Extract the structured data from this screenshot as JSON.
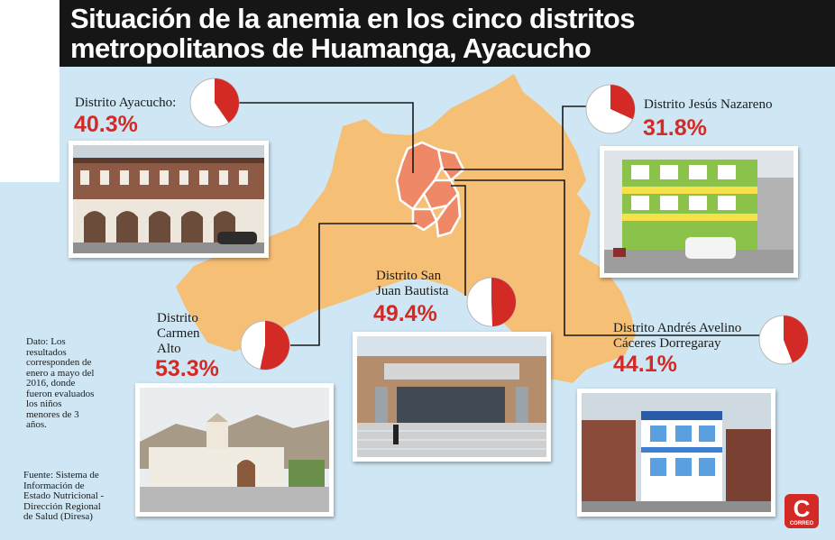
{
  "title_lines": [
    "Situación de la anemia en los cinco distritos",
    "metropolitanos de Huamanga, Ayacucho"
  ],
  "chart_data": {
    "type": "pie",
    "title": "Situación de la anemia en los cinco distritos metropolitanos de Huamanga, Ayacucho",
    "unit": "%",
    "categories": [
      "Distrito Ayacucho",
      "Distrito Jesús Nazareno",
      "Distrito San Juan Bautista",
      "Distrito Carmen Alto",
      "Distrito Andrés Avelino Cáceres Dorregaray"
    ],
    "values": [
      40.3,
      31.8,
      49.4,
      53.3,
      44.1
    ],
    "labels": [
      "40.3%",
      "31.8%",
      "49.4%",
      "53.3%",
      "44.1%"
    ]
  },
  "districts": [
    {
      "name_lines": [
        "Distrito Ayacucho:"
      ],
      "value": 40.3,
      "label": "40.3%"
    },
    {
      "name_lines": [
        "Distrito Jesús Nazareno"
      ],
      "value": 31.8,
      "label": "31.8%"
    },
    {
      "name_lines": [
        "Distrito San",
        "Juan Bautista"
      ],
      "value": 49.4,
      "label": "49.4%"
    },
    {
      "name_lines": [
        "Distrito",
        "Carmen",
        "Alto"
      ],
      "value": 53.3,
      "label": "53.3%"
    },
    {
      "name_lines": [
        "Distrito Andrés Avelino",
        "Cáceres Dorregaray"
      ],
      "value": 44.1,
      "label": "44.1%"
    }
  ],
  "note_lines": [
    "Dato: Los",
    "resultados",
    "corresponden de",
    "enero a mayo del",
    "2016, donde",
    "fueron evaluados",
    "los niños",
    "menores de 3",
    "años."
  ],
  "source_lines": [
    "Fuente: Sistema de",
    "Información de",
    "Estado Nutricional -",
    "Dirección Regional",
    "de Salud (Diresa)"
  ],
  "logo": {
    "letter": "C",
    "word": "CORREO"
  },
  "colors": {
    "anemia": "#d42a25",
    "pie_base": "#ffffff",
    "map_fill": "#f6bf76",
    "map_background": "#cfe7f4",
    "district_fill": "#ee8866",
    "title_bar": "#161616"
  }
}
